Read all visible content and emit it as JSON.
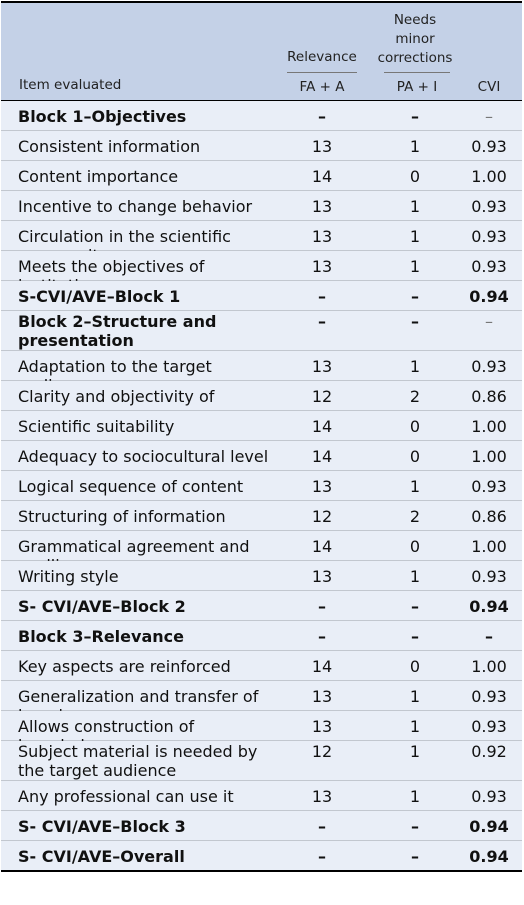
{
  "header": {
    "item_evaluated": "Item evaluated",
    "relevance": "Relevance",
    "needs_minor_corrections": "Needs minor corrections",
    "fa_a": "FA + A",
    "pa_i": "PA + I",
    "cvi": "CVI"
  },
  "rows": [
    {
      "item": "Block 1–Objectives",
      "rel": "–",
      "cor": "–",
      "cvi": "–",
      "bold": true,
      "light_cvi": true
    },
    {
      "item": "Consistent information",
      "rel": "13",
      "cor": "1",
      "cvi": "0.93"
    },
    {
      "item": "Content importance",
      "rel": "14",
      "cor": "0",
      "cvi": "1.00"
    },
    {
      "item": "Incentive to change behavior",
      "rel": "13",
      "cor": "1",
      "cvi": "0.93"
    },
    {
      "item": "Circulation in the scientific community",
      "rel": "13",
      "cor": "1",
      "cvi": "0.93"
    },
    {
      "item": "Meets the objectives of institutions",
      "rel": "13",
      "cor": "1",
      "cvi": "0.93"
    },
    {
      "item": "S-CVI/AVE–Block 1",
      "rel": "–",
      "cor": "–",
      "cvi": "0.94",
      "bold": true
    },
    {
      "item": "Block 2–Structure and presentation",
      "rel": "–",
      "cor": "–",
      "cvi": "–",
      "bold": true,
      "tall": true,
      "light_cvi": true
    },
    {
      "item": "Adaptation to the target audience",
      "rel": "13",
      "cor": "1",
      "cvi": "0.93"
    },
    {
      "item": "Clarity and objectivity of messages",
      "rel": "12",
      "cor": "2",
      "cvi": "0.86"
    },
    {
      "item": "Scientific suitability",
      "rel": "14",
      "cor": "0",
      "cvi": "1.00"
    },
    {
      "item": "Adequacy to sociocultural level",
      "rel": "14",
      "cor": "0",
      "cvi": "1.00"
    },
    {
      "item": "Logical sequence of content",
      "rel": "13",
      "cor": "1",
      "cvi": "0.93"
    },
    {
      "item": "Structuring of information",
      "rel": "12",
      "cor": "2",
      "cvi": "0.86"
    },
    {
      "item": "Grammatical agreement and spelling",
      "rel": "14",
      "cor": "0",
      "cvi": "1.00"
    },
    {
      "item": "Writing style",
      "rel": "13",
      "cor": "1",
      "cvi": "0.93"
    },
    {
      "item": "S- CVI/AVE–Block 2",
      "rel": "–",
      "cor": "–",
      "cvi": "0.94",
      "bold": true
    },
    {
      "item": "Block 3–Relevance",
      "rel": "–",
      "cor": "–",
      "cvi": "–",
      "bold": true
    },
    {
      "item": "Key aspects are reinforced",
      "rel": "14",
      "cor": "0",
      "cvi": "1.00"
    },
    {
      "item": "Generalization and transfer of learning",
      "rel": "13",
      "cor": "1",
      "cvi": "0.93"
    },
    {
      "item": "Allows construction of knowledge",
      "rel": "13",
      "cor": "1",
      "cvi": "0.93"
    },
    {
      "item": "Subject material is needed by the target audience",
      "rel": "12",
      "cor": "1",
      "cvi": "0.92",
      "tall": true
    },
    {
      "item": "Any professional can use it",
      "rel": "13",
      "cor": "1",
      "cvi": "0.93"
    },
    {
      "item": "S- CVI/AVE–Block 3",
      "rel": "–",
      "cor": "–",
      "cvi": "0.94",
      "bold": true
    },
    {
      "item": "S- CVI/AVE–Overall",
      "rel": "–",
      "cor": "–",
      "cvi": "0.94",
      "bold": true,
      "last": true
    }
  ]
}
